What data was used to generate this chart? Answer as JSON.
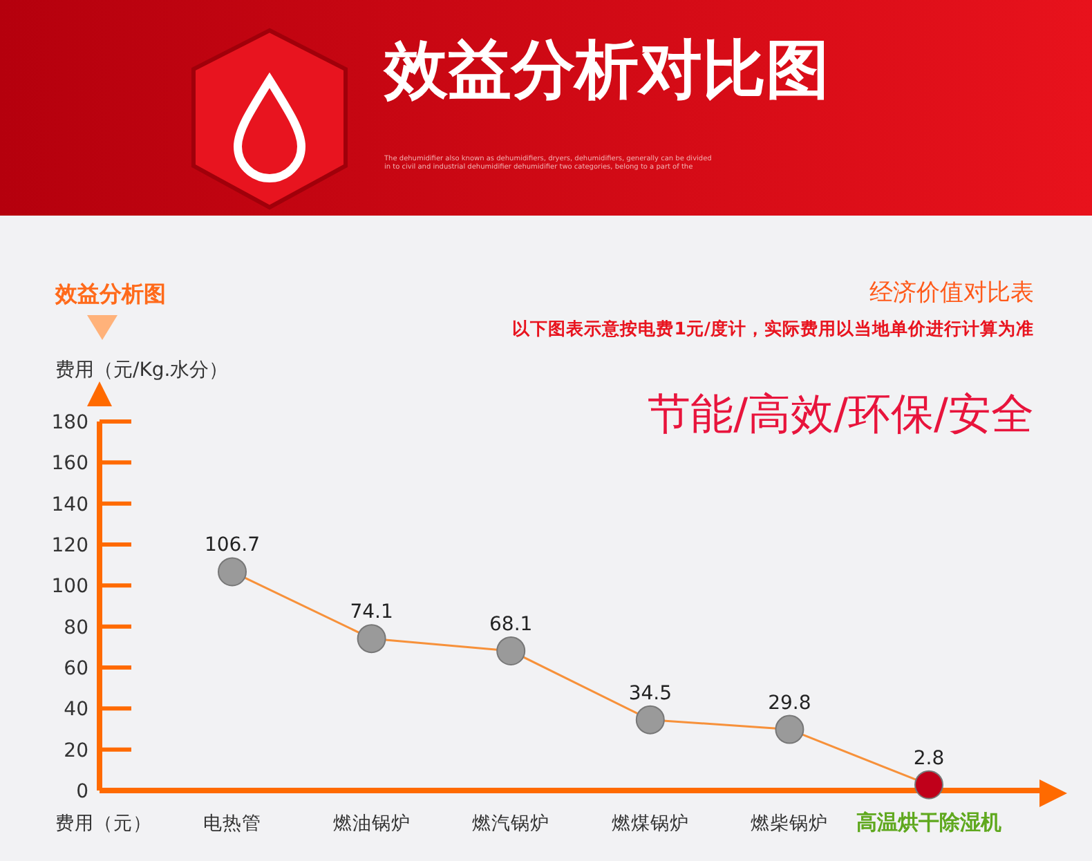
{
  "chart_data": {
    "type": "line",
    "title": "效益分析对比图",
    "subtitle": "效益分析图",
    "ylabel": "费用（元/Kg.水分）",
    "xlabel": "费用（元）",
    "categories": [
      "电热管",
      "燃油锅炉",
      "燃汽锅炉",
      "燃煤锅炉",
      "燃柴锅炉",
      "高温烘干除湿机"
    ],
    "values": [
      106.7,
      74.1,
      68.1,
      34.5,
      29.8,
      2.8
    ],
    "color": "#f7913a",
    "colors": [
      "#9a9a9a",
      "#9a9a9a",
      "#9a9a9a",
      "#9a9a9a",
      "#9a9a9a",
      "#c0001a"
    ],
    "marker": "circle",
    "data_labels": true,
    "ylim": [
      0,
      180
    ],
    "yticks": [
      0,
      20,
      40,
      60,
      80,
      100,
      120,
      140,
      160,
      180
    ],
    "annotations": [
      "The dehumidifier also known as dehumidifiers, dryers, dehumidifiers, generally can be divided in to civil and industrial dehumidifier dehumidifier two categories, belong to a part of the",
      "经济价值对比表",
      "以下图表示意按电费1元/度计，实际费用以当地单价进行计算为准",
      "节能/高效/环保/安全"
    ]
  }
}
